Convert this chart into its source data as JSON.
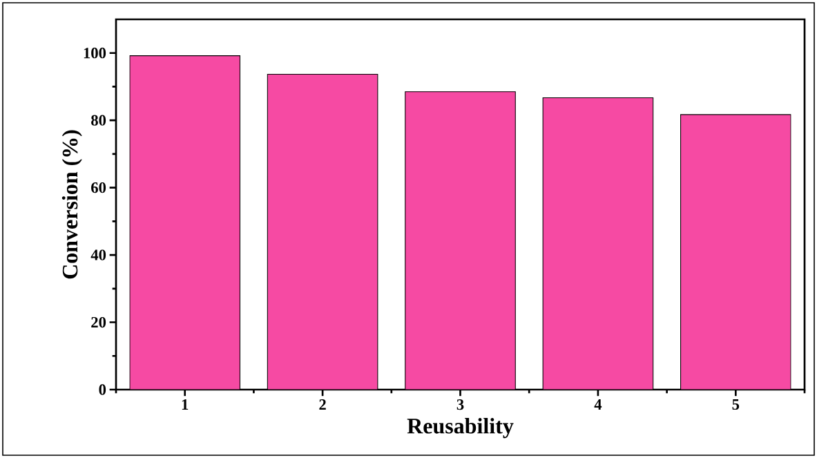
{
  "chart_data": {
    "type": "bar",
    "xlabel": "Reusability",
    "ylabel": "Conversion (%)",
    "categories": [
      "1",
      "2",
      "3",
      "4",
      "5"
    ],
    "values": [
      99.2,
      93.7,
      88.5,
      86.7,
      81.7
    ],
    "color": "#f64aa3",
    "ylim": [
      0,
      110
    ],
    "yticks": [
      0,
      20,
      40,
      60,
      80,
      100
    ]
  }
}
